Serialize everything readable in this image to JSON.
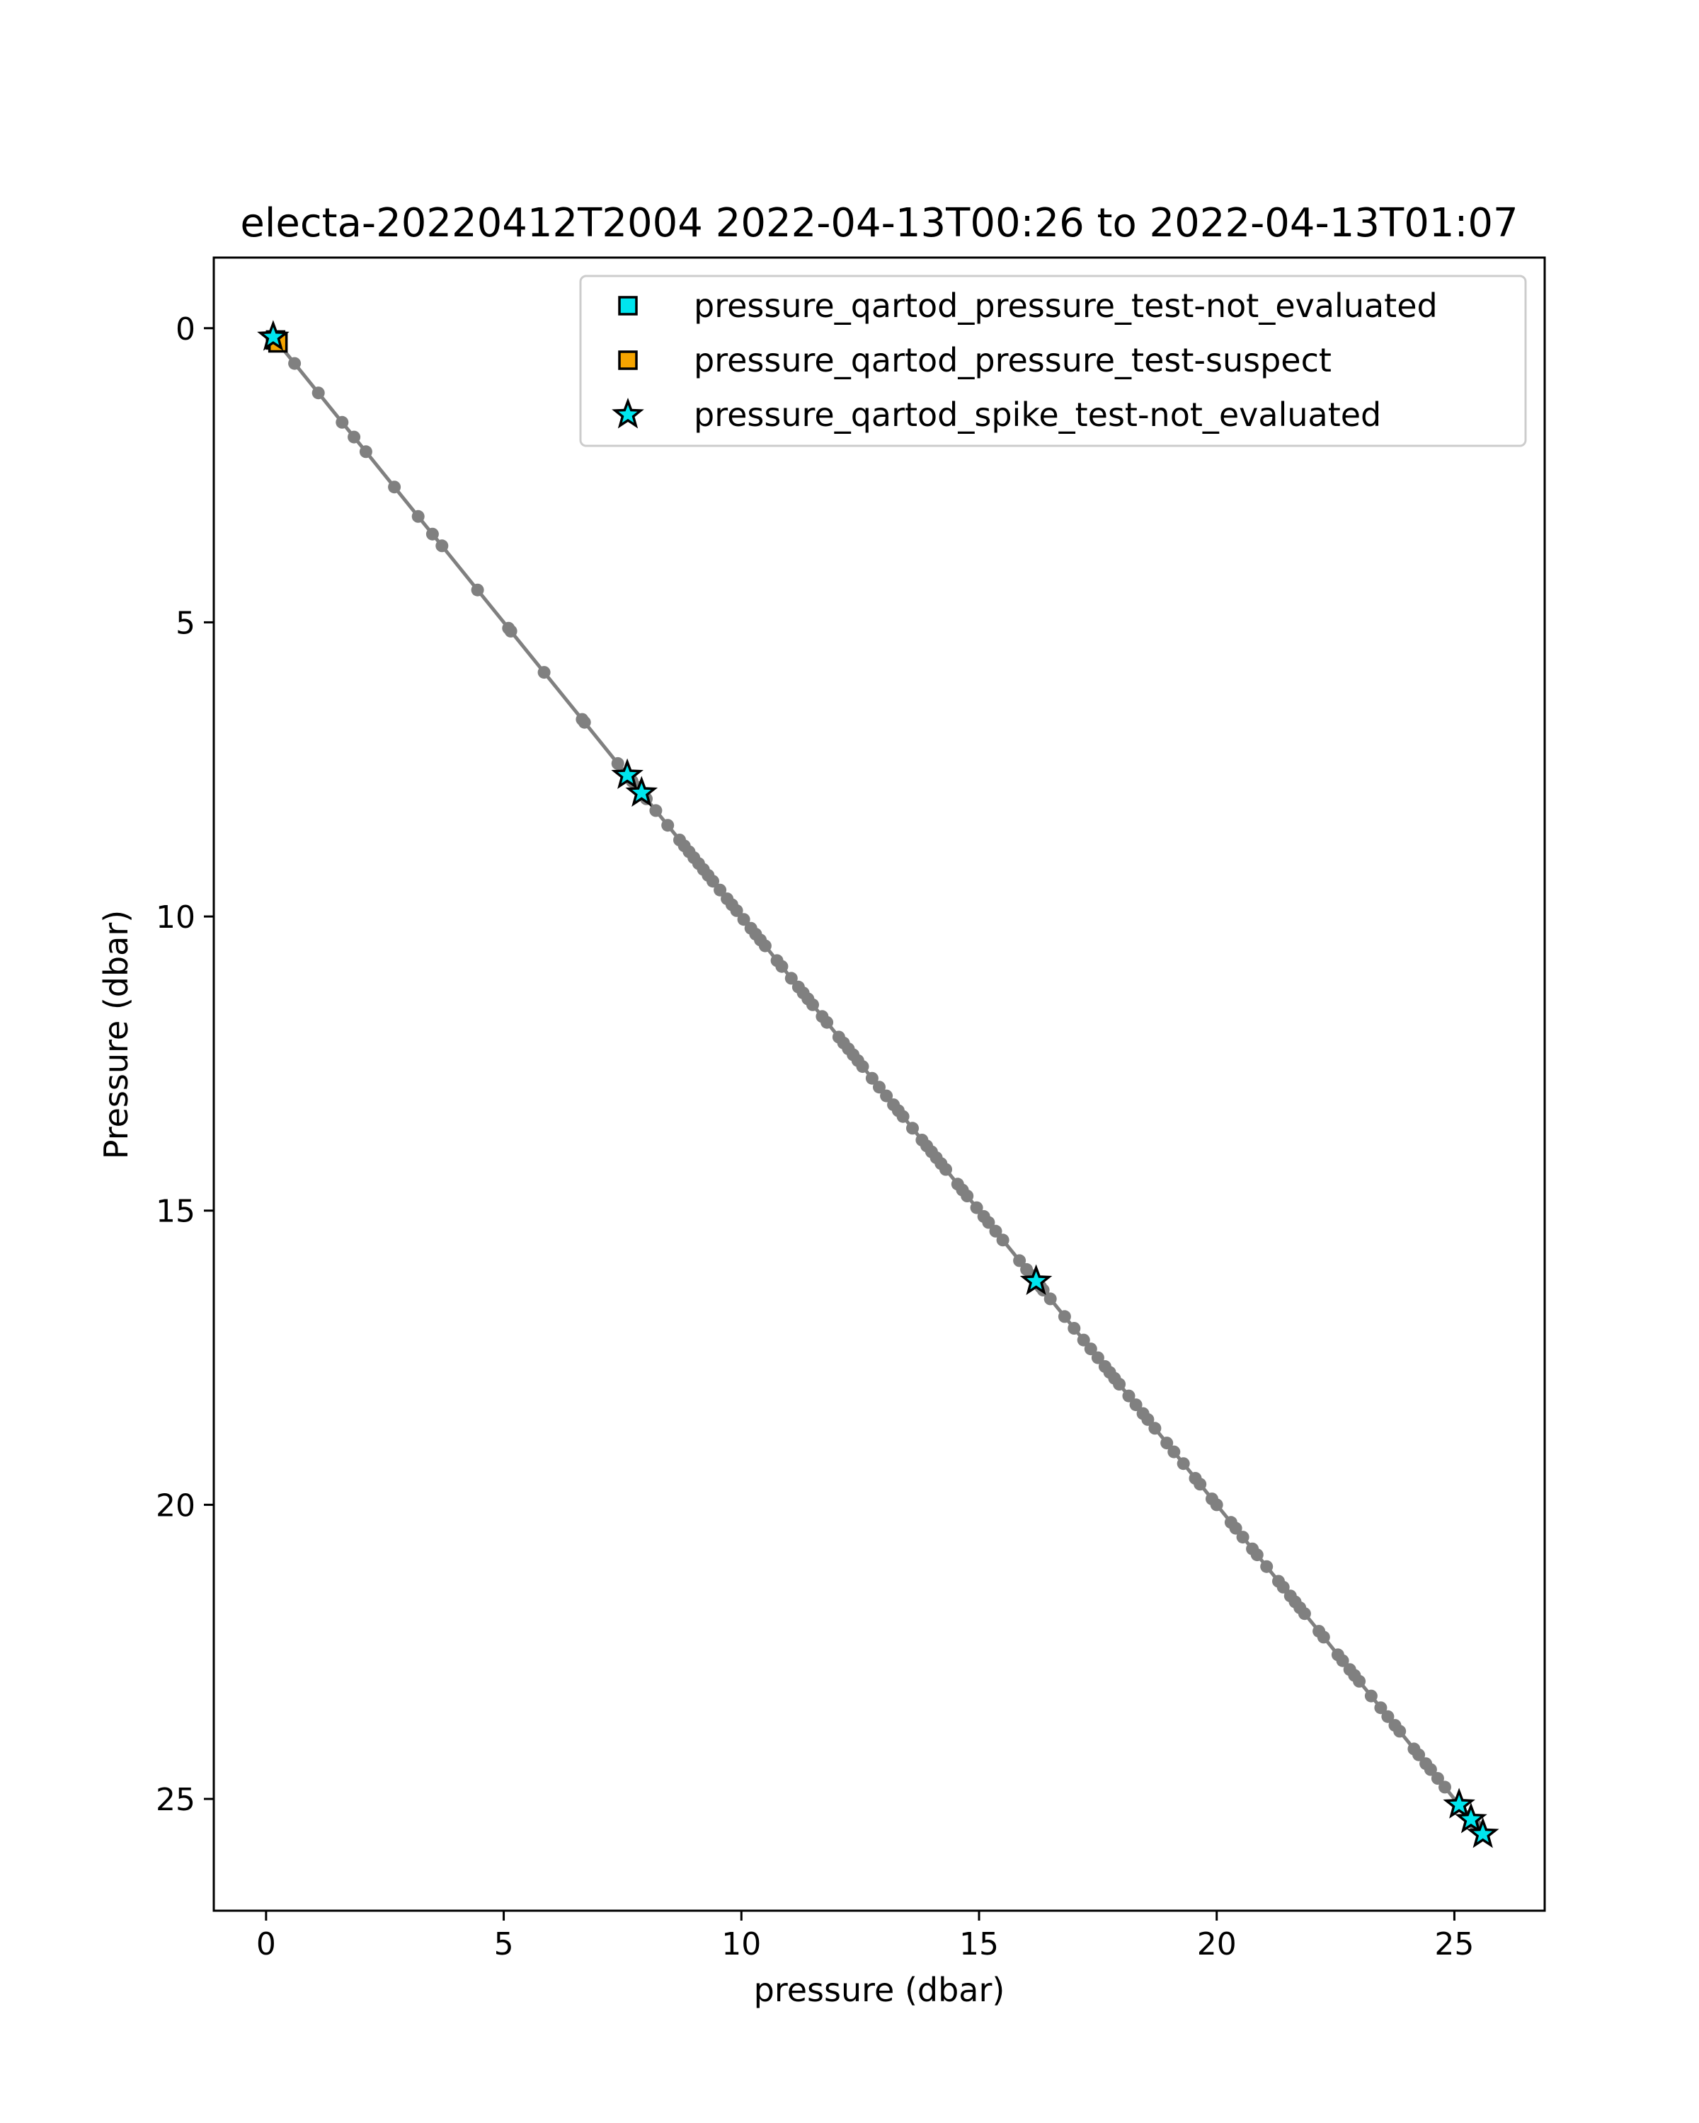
{
  "chart_data": {
    "type": "scatter",
    "title": "electa-20220412T2004 2022-04-13T00:26 to 2022-04-13T01:07",
    "xlabel": "pressure (dbar)",
    "ylabel": "Pressure (dbar)",
    "xlim": [
      -1.1,
      26.9
    ],
    "ylim": [
      26.9,
      -1.2
    ],
    "y_inverted": true,
    "grid": false,
    "legend_position": "top-right",
    "xticks": [
      {
        "value": 0,
        "label": "0"
      },
      {
        "value": 5,
        "label": "5"
      },
      {
        "value": 10,
        "label": "10"
      },
      {
        "value": 15,
        "label": "15"
      },
      {
        "value": 20,
        "label": "20"
      },
      {
        "value": 25,
        "label": "25"
      }
    ],
    "yticks": [
      {
        "value": 0,
        "label": "0"
      },
      {
        "value": 5,
        "label": "5"
      },
      {
        "value": 10,
        "label": "10"
      },
      {
        "value": 15,
        "label": "15"
      },
      {
        "value": 20,
        "label": "20"
      },
      {
        "value": 25,
        "label": "25"
      }
    ],
    "profile": {
      "color": "#808080",
      "values": [
        0.15,
        0.3,
        0.6,
        1.1,
        1.6,
        1.85,
        2.1,
        2.7,
        3.2,
        3.5,
        3.7,
        4.45,
        5.1,
        5.15,
        5.85,
        6.65,
        6.7,
        7.4,
        7.6,
        7.7,
        7.8,
        7.9,
        8.0,
        8.2,
        8.45,
        8.7,
        8.8,
        8.9,
        9.0,
        9.1,
        9.2,
        9.3,
        9.4,
        9.55,
        9.7,
        9.8,
        9.9,
        10.05,
        10.2,
        10.3,
        10.4,
        10.5,
        10.75,
        10.85,
        11.05,
        11.2,
        11.3,
        11.4,
        11.5,
        11.7,
        11.8,
        12.05,
        12.15,
        12.25,
        12.35,
        12.45,
        12.55,
        12.75,
        12.9,
        13.05,
        13.2,
        13.3,
        13.4,
        13.6,
        13.8,
        13.9,
        14.0,
        14.1,
        14.2,
        14.3,
        14.55,
        14.65,
        14.75,
        14.95,
        15.1,
        15.2,
        15.35,
        15.5,
        15.85,
        16.0,
        16.1,
        16.2,
        16.3,
        16.35,
        16.5,
        16.8,
        17.0,
        17.2,
        17.35,
        17.5,
        17.65,
        17.75,
        17.85,
        17.95,
        18.15,
        18.3,
        18.45,
        18.55,
        18.7,
        18.95,
        19.1,
        19.3,
        19.55,
        19.65,
        19.9,
        20.0,
        20.3,
        20.4,
        20.55,
        20.75,
        20.85,
        21.05,
        21.3,
        21.4,
        21.55,
        21.65,
        21.75,
        21.85,
        22.15,
        22.25,
        22.55,
        22.65,
        22.8,
        22.9,
        23.0,
        23.25,
        23.45,
        23.6,
        23.75,
        23.85,
        24.15,
        24.25,
        24.4,
        24.5,
        24.65,
        24.8,
        25.1,
        25.3,
        25.45,
        25.6
      ]
    },
    "series": [
      {
        "name": "pressure_qartod_pressure_test-not_evaluated",
        "marker": "square",
        "color": "#00e5ee",
        "points": [
          [
            0.2,
            0.2
          ]
        ]
      },
      {
        "name": "pressure_qartod_pressure_test-suspect",
        "marker": "square",
        "color": "#f5a400",
        "points": [
          [
            0.25,
            0.25
          ]
        ]
      },
      {
        "name": "pressure_qartod_spike_test-not_evaluated",
        "marker": "star",
        "color": "#00e5ee",
        "points": [
          [
            0.15,
            0.15
          ],
          [
            7.6,
            7.6
          ],
          [
            7.9,
            7.9
          ],
          [
            16.2,
            16.2
          ],
          [
            25.1,
            25.1
          ],
          [
            25.35,
            25.35
          ],
          [
            25.6,
            25.6
          ]
        ]
      }
    ]
  }
}
